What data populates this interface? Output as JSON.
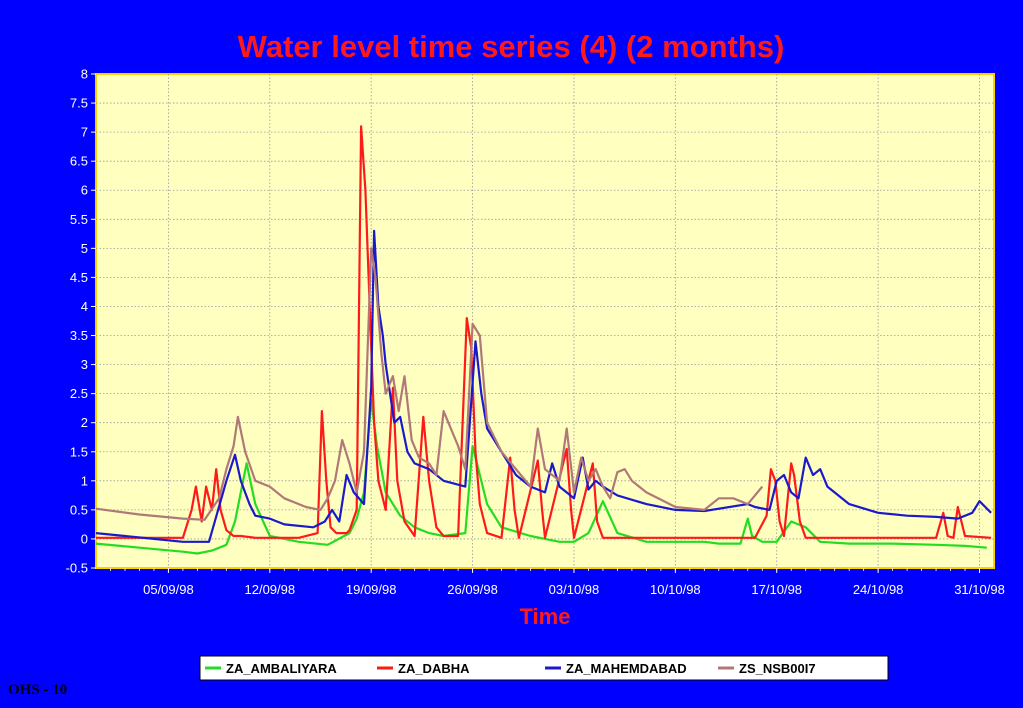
{
  "footer": "OHS - 10",
  "chart_data": {
    "type": "line",
    "title": "Water level time series (4) (2 months)",
    "xlabel": "Time",
    "ylabel": "",
    "x_unit": "days",
    "x_range": [
      "31/08/98",
      "01/11/98"
    ],
    "xlim": [
      0,
      62
    ],
    "ylim": [
      -0.5,
      8
    ],
    "y_ticks": [
      -0.5,
      0,
      0.5,
      1,
      1.5,
      2,
      2.5,
      3,
      3.5,
      4,
      4.5,
      5,
      5.5,
      6,
      6.5,
      7,
      7.5,
      8
    ],
    "x_ticks": [
      {
        "x": 5,
        "label": "05/09/98"
      },
      {
        "x": 12,
        "label": "12/09/98"
      },
      {
        "x": 19,
        "label": "19/09/98"
      },
      {
        "x": 26,
        "label": "26/09/98"
      },
      {
        "x": 33,
        "label": "03/10/98"
      },
      {
        "x": 40,
        "label": "10/10/98"
      },
      {
        "x": 47,
        "label": "17/10/98"
      },
      {
        "x": 54,
        "label": "24/10/98"
      },
      {
        "x": 61,
        "label": "31/10/98"
      }
    ],
    "grid": true,
    "legend_position": "bottom",
    "series": [
      {
        "name": "ZA_AMBALIYARA",
        "color": "#22dd22",
        "x": [
          0,
          3,
          6,
          7,
          8,
          9,
          9.6,
          10,
          10.4,
          11,
          12,
          14,
          16,
          17.5,
          18,
          18.5,
          19,
          19.4,
          20,
          21,
          22,
          23,
          24,
          25.5,
          26,
          27,
          28,
          30,
          32,
          33,
          34,
          35,
          36,
          38,
          40,
          42,
          43,
          44.5,
          45,
          45.3,
          46,
          47,
          48,
          49,
          50,
          52,
          55,
          58,
          60,
          61.5
        ],
        "y": [
          -0.08,
          -0.15,
          -0.22,
          -0.25,
          -0.2,
          -0.1,
          0.3,
          0.8,
          1.3,
          0.6,
          0.05,
          -0.05,
          -0.1,
          0.1,
          0.35,
          0.8,
          2.4,
          1.6,
          0.8,
          0.4,
          0.2,
          0.1,
          0.05,
          0.1,
          1.6,
          0.6,
          0.2,
          0.05,
          -0.05,
          -0.05,
          0.1,
          0.65,
          0.1,
          -0.05,
          -0.05,
          -0.05,
          -0.08,
          -0.08,
          0.35,
          0.05,
          -0.05,
          -0.05,
          0.3,
          0.2,
          -0.05,
          -0.08,
          -0.08,
          -0.1,
          -0.12,
          -0.15
        ]
      },
      {
        "name": "ZA_DABHA",
        "color": "#ff1a1a",
        "x": [
          0,
          6,
          6.6,
          6.9,
          7.3,
          7.6,
          8,
          8.3,
          8.6,
          9,
          9.5,
          10,
          11,
          12,
          14,
          15.3,
          15.6,
          15.9,
          16.2,
          16.6,
          17,
          17.3,
          17.5,
          18,
          18.3,
          18.6,
          18.9,
          19.2,
          19.5,
          20,
          20.5,
          20.8,
          21.3,
          22,
          22.6,
          23,
          23.5,
          24,
          25,
          25.6,
          25.9,
          26.2,
          26.5,
          27,
          28,
          28.6,
          28.9,
          29.2,
          30.5,
          30.8,
          31,
          32.5,
          32.8,
          33,
          34.3,
          34.6,
          35,
          36,
          45.5,
          46.3,
          46.6,
          46.9,
          47.2,
          47.5,
          48,
          48.2,
          48.6,
          49,
          50,
          52,
          55,
          58,
          58.5,
          58.8,
          59.2,
          59.5,
          60,
          61.8
        ],
        "y": [
          0.02,
          0.02,
          0.5,
          0.9,
          0.3,
          0.9,
          0.5,
          1.2,
          0.5,
          0.15,
          0.05,
          0.05,
          0.02,
          0.02,
          0.02,
          0.1,
          2.2,
          1.0,
          0.2,
          0.1,
          0.1,
          0.1,
          0.15,
          0.5,
          7.1,
          6.0,
          4.0,
          2.0,
          1.0,
          0.5,
          2.6,
          1.0,
          0.3,
          0.05,
          2.1,
          1.0,
          0.2,
          0.05,
          0.05,
          3.8,
          3.3,
          1.5,
          0.6,
          0.1,
          0.02,
          1.4,
          0.5,
          0.02,
          1.35,
          0.5,
          0.02,
          1.55,
          0.5,
          0.02,
          1.3,
          0.3,
          0.02,
          0.02,
          0.02,
          0.4,
          1.2,
          1.0,
          0.3,
          0.05,
          1.3,
          1.1,
          0.3,
          0.02,
          0.02,
          0.02,
          0.02,
          0.02,
          0.45,
          0.05,
          0.02,
          0.55,
          0.05,
          0.02
        ]
      },
      {
        "name": "ZA_MAHEMDABAD",
        "color": "#1a1acc",
        "x": [
          0,
          2,
          4,
          6,
          7.8,
          8.2,
          9,
          9.6,
          10,
          10.6,
          11,
          12,
          13,
          15,
          15.8,
          16.3,
          16.8,
          17.3,
          17.8,
          18.5,
          19,
          19.2,
          19.5,
          19.8,
          20,
          20.6,
          21,
          21.5,
          22,
          23,
          24,
          25.5,
          26.2,
          26.6,
          27,
          28,
          29,
          30,
          31,
          31.5,
          32,
          33,
          33.6,
          34,
          34.5,
          35,
          36,
          38,
          40,
          42,
          45,
          45.5,
          46.5,
          47,
          47.5,
          48,
          48.5,
          49,
          49.5,
          50,
          50.5,
          52,
          54,
          56,
          58,
          59.5,
          60.5,
          61,
          61.8
        ],
        "y": [
          0.1,
          0.05,
          0.0,
          -0.05,
          -0.05,
          0.3,
          1.0,
          1.45,
          1.0,
          0.6,
          0.4,
          0.35,
          0.25,
          0.2,
          0.3,
          0.5,
          0.3,
          1.1,
          0.8,
          0.6,
          2.6,
          5.3,
          4.0,
          3.5,
          3.0,
          2.0,
          2.1,
          1.5,
          1.3,
          1.2,
          1.0,
          0.9,
          3.4,
          2.5,
          1.9,
          1.5,
          1.1,
          0.9,
          0.8,
          1.3,
          0.9,
          0.7,
          1.4,
          0.85,
          1.0,
          0.9,
          0.75,
          0.6,
          0.5,
          0.48,
          0.6,
          0.55,
          0.5,
          1.0,
          1.1,
          0.8,
          0.7,
          1.4,
          1.1,
          1.2,
          0.9,
          0.6,
          0.45,
          0.4,
          0.38,
          0.35,
          0.45,
          0.65,
          0.45
        ]
      },
      {
        "name": "ZS_NSB00I7",
        "color": "#b07878",
        "x": [
          0,
          3,
          6,
          7.5,
          8.5,
          9,
          9.5,
          9.8,
          10.3,
          11,
          12,
          13,
          14.5,
          15.5,
          16,
          16.5,
          17,
          17.5,
          18,
          18.5,
          19,
          19.3,
          19.7,
          20,
          20.5,
          20.9,
          21.3,
          21.8,
          22.3,
          23,
          23.5,
          24,
          25,
          25.5,
          26,
          26.5,
          27,
          28,
          29,
          30,
          30.5,
          31,
          32,
          32.5,
          33,
          33.5,
          34,
          34.5,
          35,
          35.5,
          36,
          36.5,
          37,
          38,
          40,
          42,
          43,
          44,
          45,
          46
        ],
        "y": [
          0.52,
          0.42,
          0.35,
          0.33,
          0.7,
          1.2,
          1.6,
          2.1,
          1.5,
          1.0,
          0.9,
          0.7,
          0.55,
          0.5,
          0.7,
          1.0,
          1.7,
          1.3,
          0.8,
          1.5,
          5.0,
          4.5,
          3.2,
          2.5,
          2.8,
          2.2,
          2.8,
          1.7,
          1.4,
          1.3,
          1.1,
          2.2,
          1.6,
          1.2,
          3.7,
          3.5,
          2.0,
          1.5,
          1.2,
          0.9,
          1.9,
          1.2,
          1.0,
          1.9,
          0.8,
          1.4,
          1.0,
          1.2,
          0.9,
          0.7,
          1.15,
          1.2,
          1.0,
          0.8,
          0.55,
          0.5,
          0.7,
          0.7,
          0.6,
          0.9
        ]
      }
    ]
  }
}
